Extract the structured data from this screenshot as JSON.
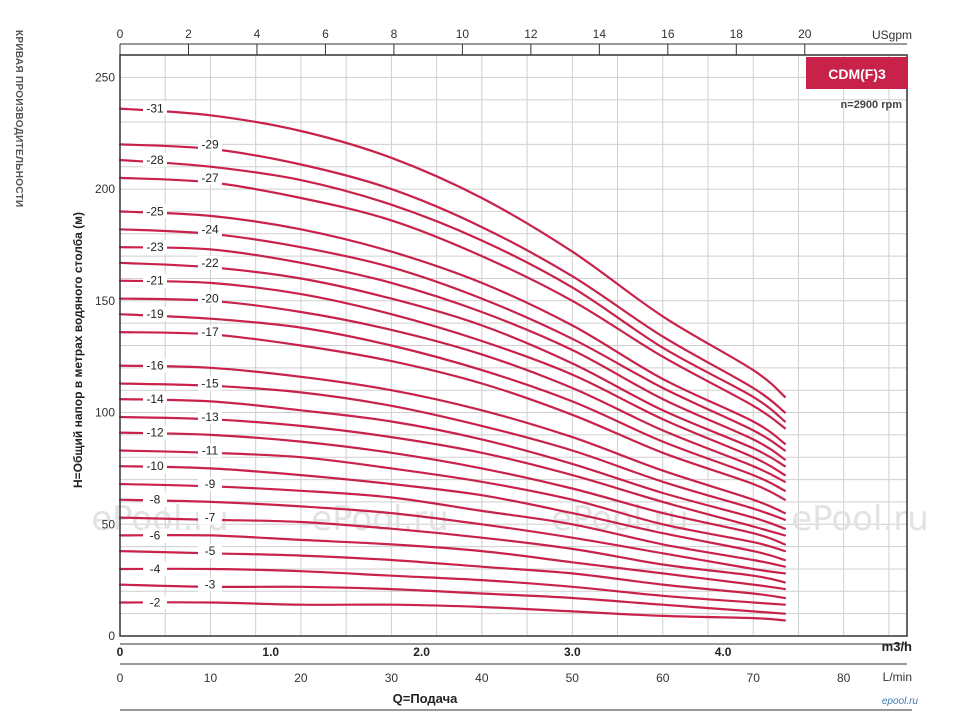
{
  "chart_data": {
    "type": "line",
    "title": "",
    "badge": "CDM(F)3",
    "speed": "n=2900 rpm",
    "side_title": "КРИВАЯ ПРОИЗВОДИТЕЛЬНОСТИ",
    "ylabel": "H=Общий напор в метрах водяного столба (м)",
    "xlabel": "Q=Подача",
    "units": {
      "usgpm": "USgpm",
      "m3h": "m3/h",
      "lmin": "L/min"
    },
    "ylim": [
      0,
      260
    ],
    "xlim_lmin": [
      0,
      87
    ],
    "grid": true,
    "y_ticks": [
      "0",
      "50",
      "100",
      "150",
      "200",
      "250"
    ],
    "x_ticks_usgpm": [
      "0",
      "2",
      "4",
      "6",
      "8",
      "10",
      "12",
      "14",
      "16",
      "18",
      "20"
    ],
    "x_ticks_m3h": [
      "0",
      "1.0",
      "2.0",
      "3.0",
      "4.0"
    ],
    "x_ticks_lmin": [
      "0",
      "10",
      "20",
      "30",
      "40",
      "50",
      "60",
      "70",
      "80"
    ],
    "x_lmin": [
      0,
      10,
      20,
      30,
      40,
      50,
      60,
      70,
      73.5
    ],
    "series": [
      {
        "name": "-31",
        "values": [
          236,
          233,
          226,
          214,
          196,
          172,
          143,
          119,
          107
        ]
      },
      {
        "name": "-29",
        "values": [
          220,
          218,
          211,
          200,
          183,
          161,
          134,
          111,
          100
        ]
      },
      {
        "name": "-28",
        "values": [
          213,
          210,
          204,
          193,
          177,
          156,
          129,
          107,
          96
        ]
      },
      {
        "name": "-27",
        "values": [
          205,
          203,
          196,
          186,
          170,
          150,
          125,
          103,
          93
        ]
      },
      {
        "name": "-25",
        "values": [
          190,
          188,
          182,
          172,
          158,
          139,
          115,
          96,
          86
        ]
      },
      {
        "name": "-24",
        "values": [
          182,
          180,
          174,
          165,
          151,
          133,
          111,
          92,
          83
        ]
      },
      {
        "name": "-23",
        "values": [
          174,
          173,
          167,
          158,
          145,
          128,
          106,
          88,
          79
        ]
      },
      {
        "name": "-22",
        "values": [
          167,
          165,
          160,
          151,
          139,
          122,
          101,
          84,
          76
        ]
      },
      {
        "name": "-21",
        "values": [
          159,
          158,
          153,
          144,
          132,
          117,
          97,
          80,
          72
        ]
      },
      {
        "name": "-20",
        "values": [
          151,
          150,
          145,
          137,
          126,
          111,
          92,
          76,
          69
        ]
      },
      {
        "name": "-19",
        "values": [
          144,
          142,
          138,
          130,
          119,
          105,
          87,
          72,
          65
        ]
      },
      {
        "name": "-17",
        "values": [
          136,
          135,
          130,
          123,
          113,
          99,
          82,
          68,
          61
        ]
      },
      {
        "name": "-16",
        "values": [
          121,
          120,
          116,
          110,
          101,
          89,
          74,
          61,
          55
        ]
      },
      {
        "name": "-15",
        "values": [
          113,
          112,
          109,
          103,
          94,
          83,
          69,
          57,
          52
        ]
      },
      {
        "name": "-14",
        "values": [
          106,
          105,
          101,
          96,
          88,
          77,
          64,
          53,
          48
        ]
      },
      {
        "name": "-13",
        "values": [
          98,
          97,
          94,
          89,
          82,
          72,
          60,
          49,
          45
        ]
      },
      {
        "name": "-12",
        "values": [
          91,
          90,
          87,
          82,
          75,
          66,
          55,
          46,
          41
        ]
      },
      {
        "name": "-11",
        "values": [
          83,
          82,
          80,
          75,
          69,
          61,
          50,
          42,
          38
        ]
      },
      {
        "name": "-10",
        "values": [
          76,
          75,
          72,
          68,
          63,
          55,
          46,
          38,
          34
        ]
      },
      {
        "name": "-9",
        "values": [
          68,
          67,
          65,
          62,
          56,
          50,
          41,
          34,
          31
        ]
      },
      {
        "name": "-8",
        "values": [
          61,
          60,
          58,
          55,
          50,
          44,
          37,
          30,
          28
        ]
      },
      {
        "name": "-7",
        "values": [
          53,
          52,
          51,
          48,
          44,
          39,
          32,
          27,
          24
        ]
      },
      {
        "name": "-6",
        "values": [
          45,
          45,
          43,
          41,
          38,
          33,
          28,
          23,
          21
        ]
      },
      {
        "name": "-5",
        "values": [
          38,
          37,
          36,
          34,
          31,
          28,
          23,
          19,
          17
        ]
      },
      {
        "name": "-4",
        "values": [
          30,
          30,
          29,
          27,
          25,
          22,
          18,
          15,
          14
        ]
      },
      {
        "name": "-3",
        "values": [
          23,
          22,
          22,
          21,
          19,
          17,
          14,
          11,
          10
        ]
      },
      {
        "name": "-2",
        "values": [
          15,
          15,
          14,
          14,
          13,
          11,
          9,
          8,
          7
        ]
      }
    ],
    "label_positions": [
      "left",
      "right",
      "left",
      "right",
      "left",
      "right",
      "left",
      "right",
      "left",
      "right",
      "left",
      "right",
      "left",
      "right",
      "left",
      "right",
      "left",
      "right",
      "left",
      "right",
      "left",
      "right",
      "left",
      "right",
      "left",
      "right",
      "left"
    ],
    "colors": {
      "curve": "#c8224a",
      "grid": "#cfcfcf",
      "badge": "#c8224a",
      "axis": "#333333"
    }
  },
  "watermark": "ePool.ru",
  "brand": "epool.ru"
}
